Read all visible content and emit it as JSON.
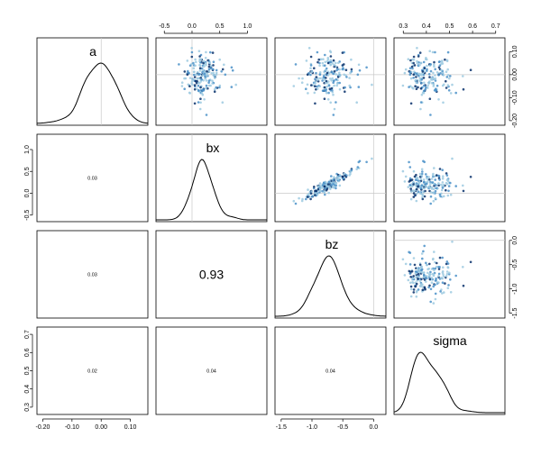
{
  "chart_data": {
    "type": "pairs",
    "variables": [
      "a",
      "bx",
      "bz",
      "sigma"
    ],
    "diagonal": "density",
    "upper": "scatter",
    "lower": "correlation",
    "colors": {
      "light": "#9ecae1",
      "mid": "#4a90c8",
      "dark": "#08306b",
      "refline": "#c8c8c8"
    },
    "ranges": {
      "a": [
        -0.22,
        0.16
      ],
      "bx": [
        -0.65,
        1.35
      ],
      "bz": [
        -1.6,
        0.2
      ],
      "sigma": [
        0.26,
        0.74
      ]
    },
    "ticks": {
      "a": {
        "values": [
          -0.2,
          -0.1,
          0.0,
          0.1
        ],
        "labels": [
          "-0.20",
          "-0.10",
          "0.00",
          "0.10"
        ]
      },
      "a_right": {
        "values": [
          -0.2,
          -0.1,
          0.0,
          0.1
        ],
        "labels": [
          "-0.20",
          "-0.10",
          "0.00",
          "0.10"
        ]
      },
      "bx": {
        "values": [
          -0.5,
          0.0,
          0.5,
          1.0
        ],
        "labels": [
          "-0.5",
          "0.0",
          "0.5",
          "1.0"
        ]
      },
      "bz": {
        "values": [
          -1.5,
          -1.0,
          -0.5,
          0.0
        ],
        "labels": [
          "-1.5",
          "-1.0",
          "-0.5",
          "0.0"
        ]
      },
      "sigma": {
        "values": [
          0.3,
          0.4,
          0.5,
          0.6,
          0.7
        ],
        "labels": [
          "0.3",
          "0.4",
          "0.5",
          "0.6",
          "0.7"
        ]
      },
      "sigma_left": {
        "values": [
          0.3,
          0.4,
          0.5,
          0.6,
          0.7
        ],
        "labels": [
          "0.3",
          "0.4",
          "0.5",
          "0.6",
          "0.7"
        ]
      }
    },
    "reference_lines": {
      "a": 0,
      "bx": 0,
      "bz": 0
    },
    "posterior": {
      "a": {
        "mean": 0.0,
        "sd": 0.05
      },
      "bx": {
        "mean": 0.18,
        "sd": 0.19
      },
      "bz": {
        "mean": -0.75,
        "sd": 0.22
      },
      "sigma": {
        "mean": 0.39,
        "sd": 0.055
      }
    },
    "correlations": [
      {
        "row": 1,
        "col": 0,
        "label": "0.03",
        "large": false
      },
      {
        "row": 2,
        "col": 0,
        "label": "0.03",
        "large": false
      },
      {
        "row": 2,
        "col": 1,
        "label": "0.93",
        "large": true
      },
      {
        "row": 3,
        "col": 0,
        "label": "0.02",
        "large": false
      },
      {
        "row": 3,
        "col": 1,
        "label": "0.04",
        "large": false
      },
      {
        "row": 3,
        "col": 2,
        "label": "0.04",
        "large": false
      }
    ],
    "n_samples": 200
  }
}
